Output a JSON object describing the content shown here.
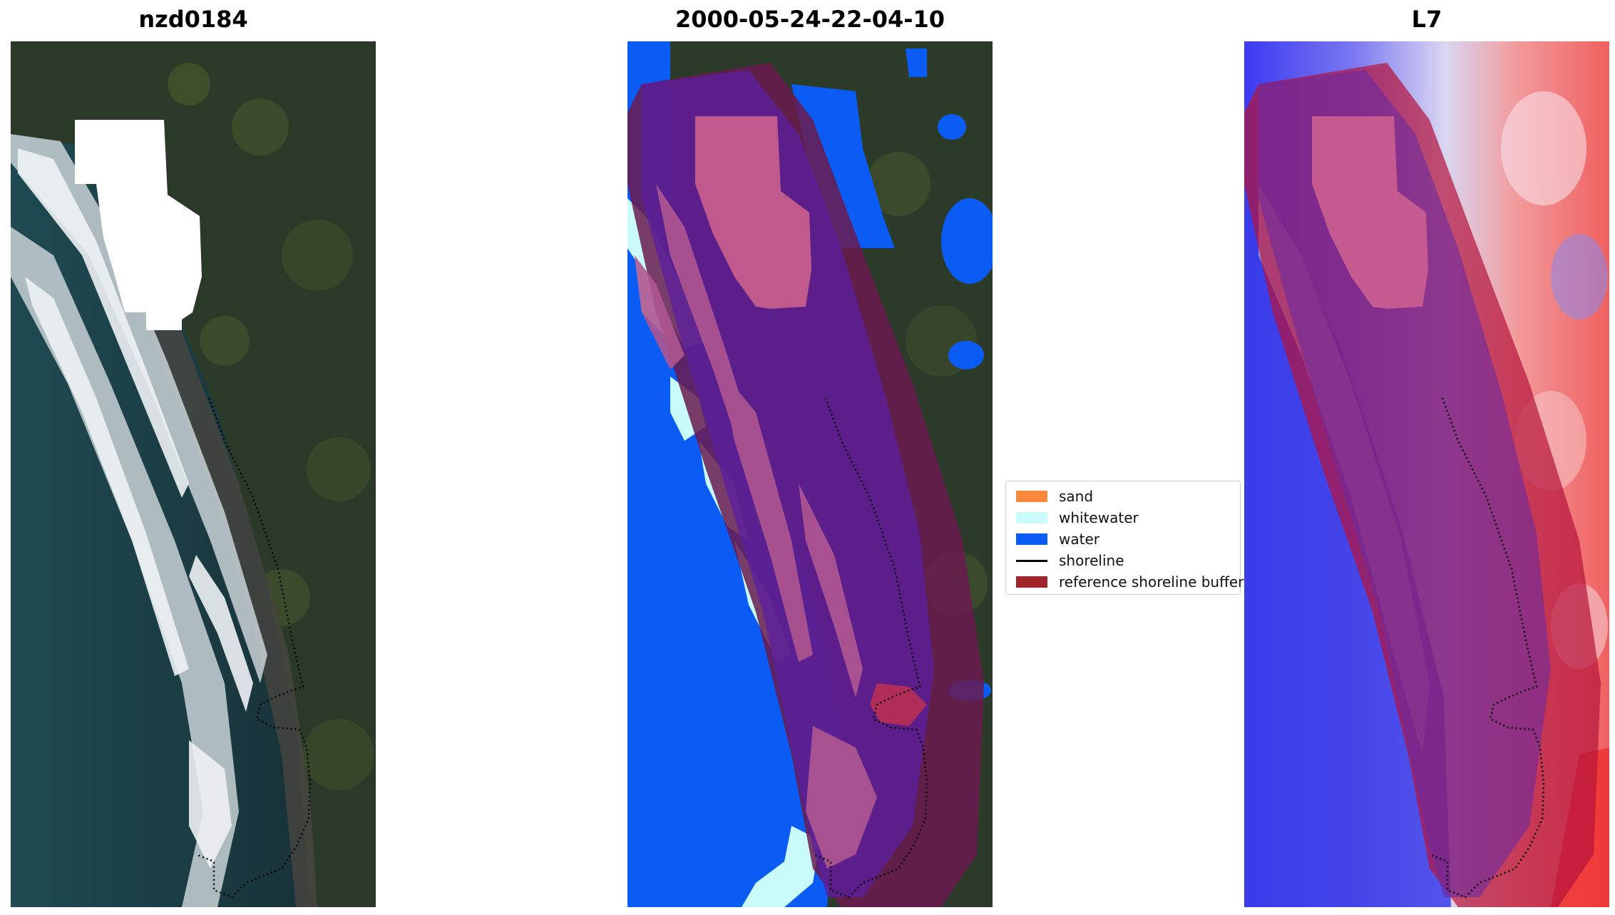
{
  "panels": [
    {
      "title": "nzd0184"
    },
    {
      "title": "2000-05-24-22-04-10"
    },
    {
      "title": "L7"
    }
  ],
  "legend": {
    "items": [
      {
        "label": "sand",
        "color": "#f9883a",
        "kind": "patch"
      },
      {
        "label": "whitewater",
        "color": "#c9fbfb",
        "kind": "patch"
      },
      {
        "label": "water",
        "color": "#0a5cf5",
        "kind": "patch"
      },
      {
        "label": "shoreline",
        "color": "#000000",
        "kind": "line"
      },
      {
        "label": "reference shoreline buffer",
        "color": "#a0242c",
        "kind": "patch"
      }
    ]
  },
  "colors": {
    "water": "#0a5cf5",
    "whitewater": "#c9fbfb",
    "sand": "#f9883a",
    "buffer": "#a0242c",
    "land": "#2c3a2a",
    "ocean": "#1d3a44"
  }
}
